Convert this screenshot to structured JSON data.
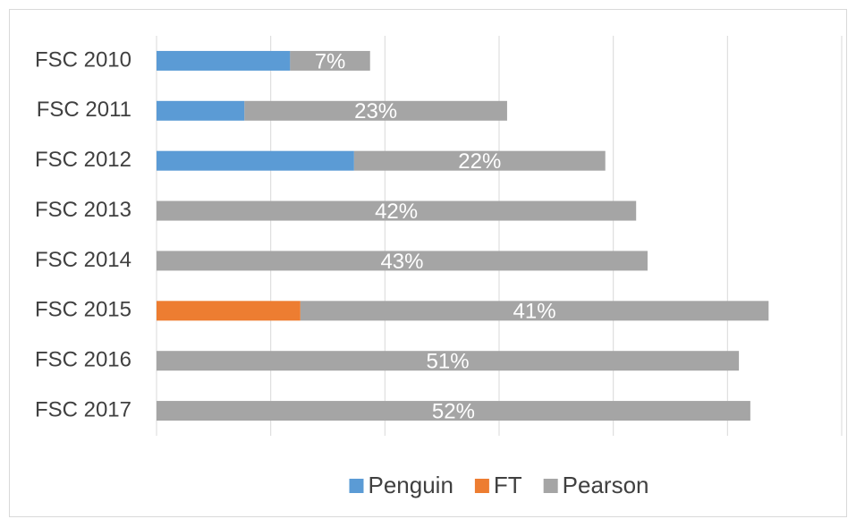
{
  "chart_data": {
    "type": "stacked-bar-horizontal",
    "categories": [
      "FSC 2010",
      "FSC 2011",
      "FSC 2012",
      "FSC 2013",
      "FSC 2014",
      "FSC 2015",
      "FSC 2016",
      "FSC 2017"
    ],
    "series": [
      {
        "name": "Penguin",
        "color": "#5b9bd5",
        "values": [
          11.7,
          7.7,
          17.3,
          null,
          null,
          null,
          null,
          null
        ]
      },
      {
        "name": "FT",
        "color": "#ed7d31",
        "values": [
          null,
          null,
          null,
          null,
          null,
          12.6,
          null,
          null
        ]
      },
      {
        "name": "Pearson",
        "color": "#a5a5a5",
        "values": [
          7,
          23,
          22,
          42,
          43,
          41,
          51,
          52
        ],
        "value_labels": [
          "7%",
          "23%",
          "22%",
          "42%",
          "43%",
          "41%",
          "51%",
          "52%"
        ]
      }
    ],
    "xlim": [
      0,
      60
    ],
    "xticks": [
      0,
      10,
      20,
      30,
      40,
      50,
      60
    ],
    "grid": true,
    "legend": "bottom"
  }
}
